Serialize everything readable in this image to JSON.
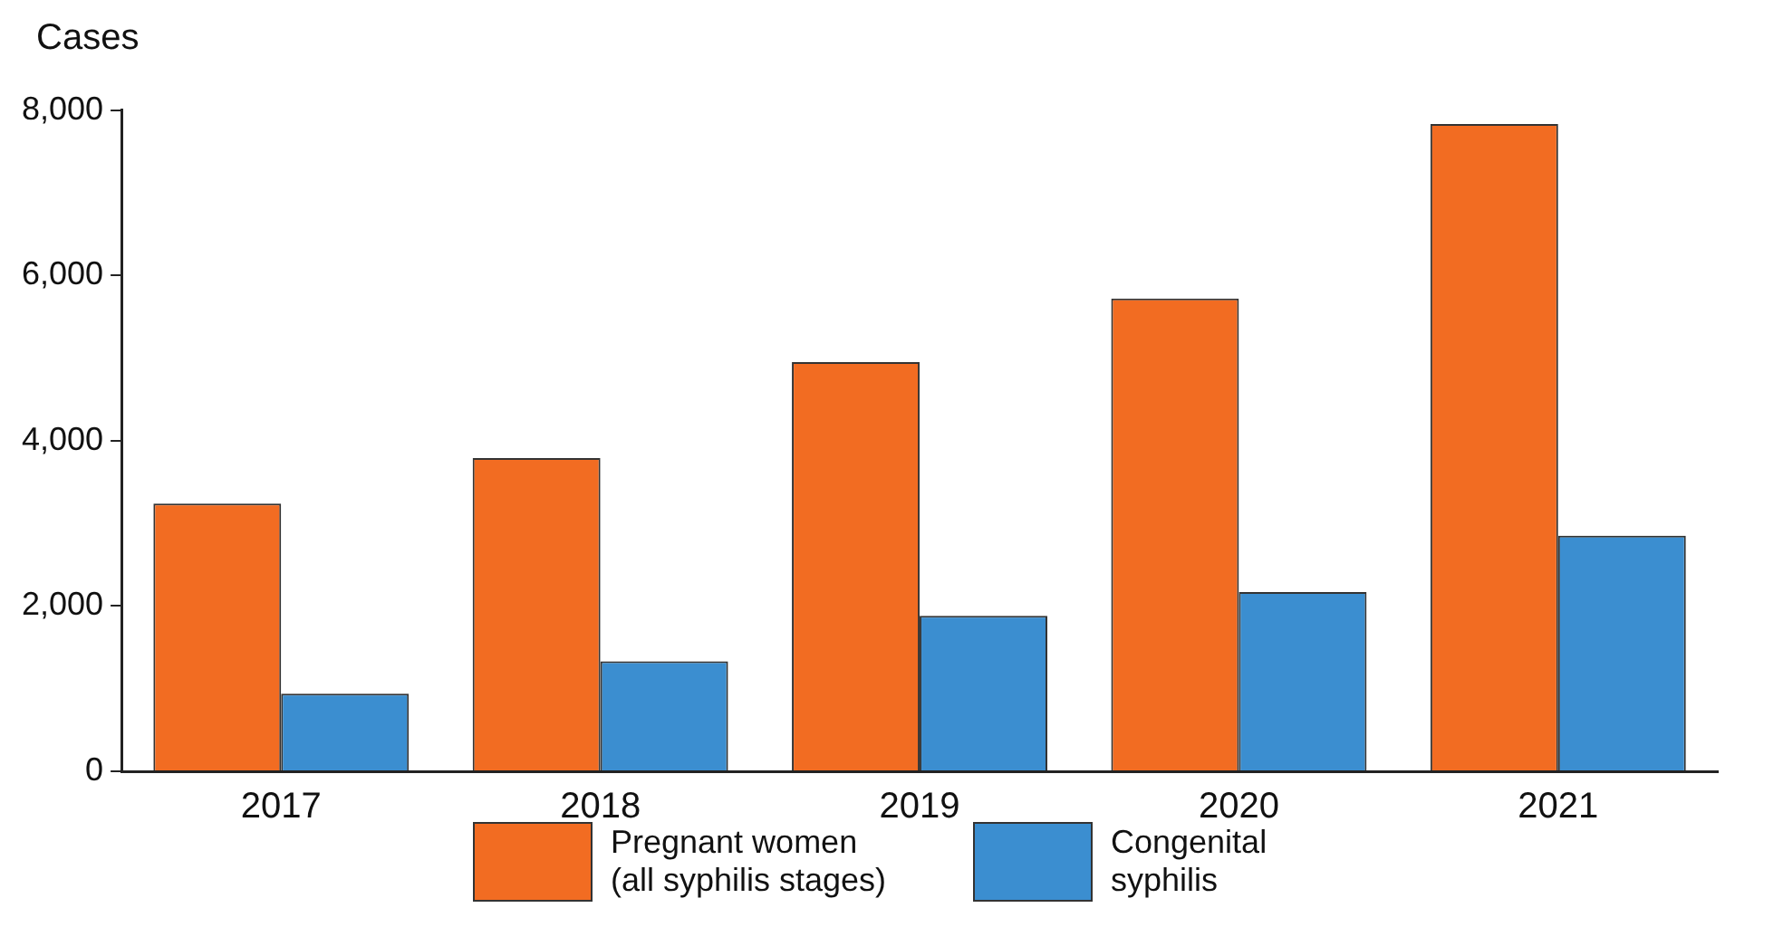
{
  "chart_data": {
    "type": "bar",
    "ylabel": "Cases",
    "categories": [
      "2017",
      "2018",
      "2019",
      "2020",
      "2021"
    ],
    "series": [
      {
        "name": "Pregnant women (all syphilis stages)",
        "color": "#f26c22",
        "values": [
          3240,
          3790,
          4950,
          5720,
          7830
        ]
      },
      {
        "name": "Congenital syphilis",
        "color": "#3b8ed0",
        "values": [
          940,
          1330,
          1880,
          2170,
          2850
        ]
      }
    ],
    "ylim": [
      0,
      8000
    ],
    "yticks": [
      {
        "value": 0,
        "label": "0"
      },
      {
        "value": 2000,
        "label": "2,000"
      },
      {
        "value": 4000,
        "label": "4,000"
      },
      {
        "value": 6000,
        "label": "6,000"
      },
      {
        "value": 8000,
        "label": "8,000"
      }
    ],
    "grid": false,
    "legend": "bottom"
  }
}
